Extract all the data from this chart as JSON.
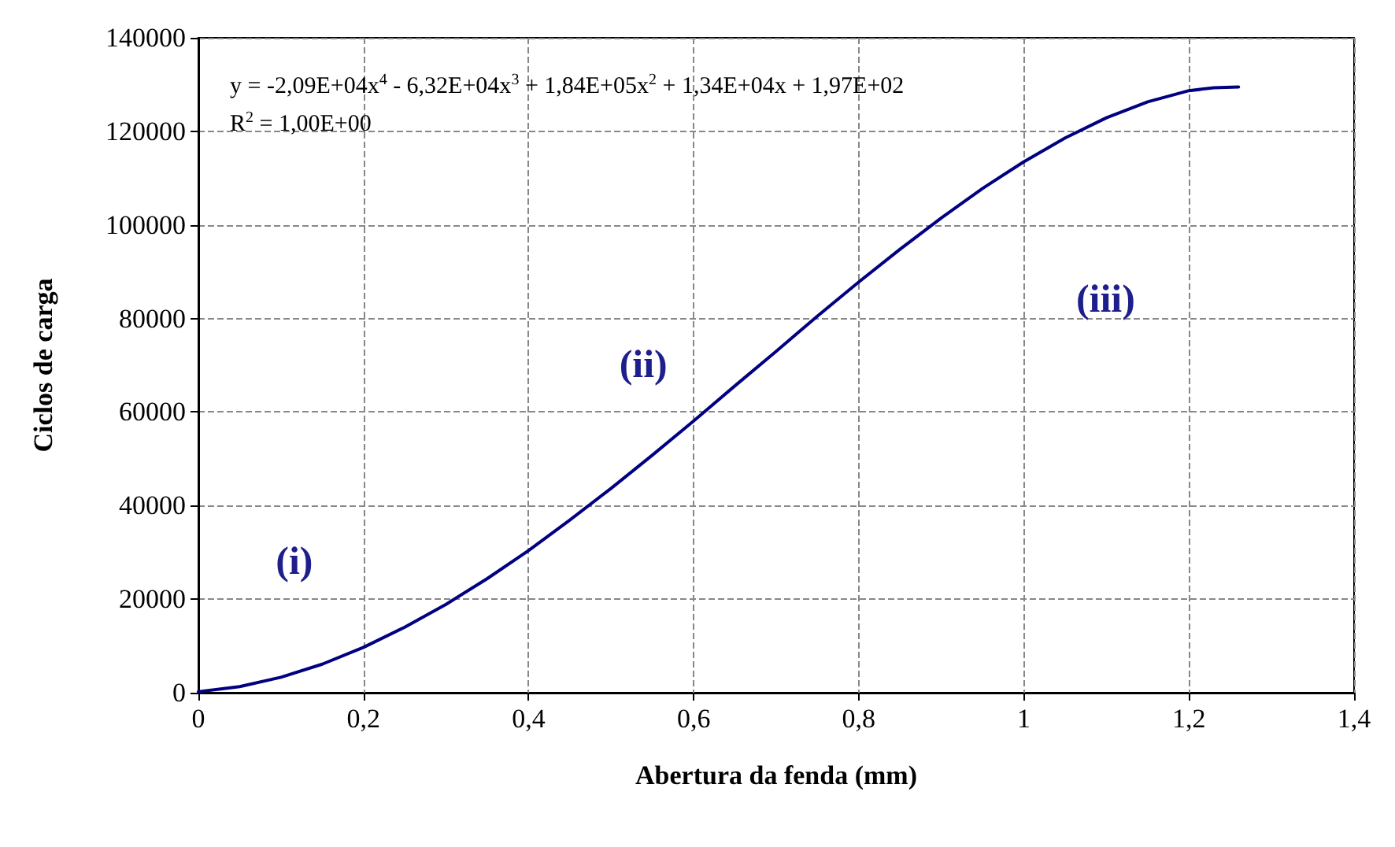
{
  "chart_data": {
    "type": "line",
    "xlabel": "Abertura da fenda (mm)",
    "ylabel": "Ciclos de carga",
    "x": [
      0,
      0.05,
      0.1,
      0.15,
      0.2,
      0.25,
      0.3,
      0.35,
      0.4,
      0.45,
      0.5,
      0.55,
      0.6,
      0.65,
      0.7,
      0.75,
      0.8,
      0.85,
      0.9,
      0.95,
      1.0,
      1.05,
      1.1,
      1.15,
      1.2,
      1.23,
      1.26
    ],
    "series": [
      {
        "color": "#000080",
        "values": [
          200,
          1300,
          3300,
          6100,
          9700,
          14000,
          18900,
          24400,
          30400,
          36900,
          43700,
          50800,
          58100,
          65600,
          73000,
          80500,
          87800,
          94800,
          101500,
          107800,
          113500,
          118600,
          122900,
          126300,
          128700,
          129300,
          129500
        ]
      }
    ],
    "xlim": [
      0,
      1.4
    ],
    "xticks": [
      0,
      {
        "value": 0.2,
        "label": "0,2"
      },
      {
        "value": 0.4,
        "label": "0,4"
      },
      {
        "value": 0.6,
        "label": "0,6"
      },
      {
        "value": 0.8,
        "label": "0,8"
      },
      1,
      {
        "value": 1.2,
        "label": "1,2"
      },
      {
        "value": 1.4,
        "label": "1,4"
      }
    ],
    "ylim": [
      0,
      140000
    ],
    "yticks": [
      0,
      20000,
      40000,
      60000,
      80000,
      100000,
      120000,
      140000
    ],
    "grid": true,
    "marker": "none",
    "line_style": "solid",
    "annotations": [
      "y = -2,09E+04x$^{4}$ - 6,32E+04x$^{3}$ + 1,84E+05x$^{2}$ + 1,34E+04x + 1,97E+02",
      "R$^{2}$ = 1,00E+00",
      "(i)",
      "(ii)",
      "(iii)"
    ]
  }
}
